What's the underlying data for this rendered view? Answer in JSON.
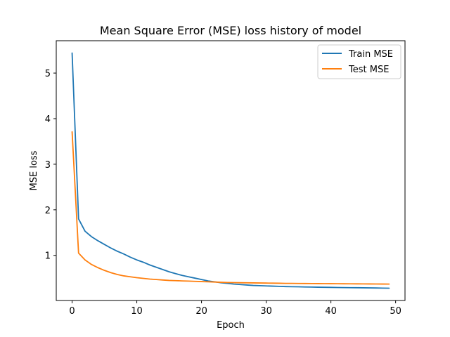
{
  "chart_data": {
    "type": "line",
    "title": "Mean Square Error (MSE) loss history of model",
    "xlabel": "Epoch",
    "ylabel": "MSE loss",
    "xlim": [
      -2.45,
      51.45
    ],
    "ylim": [
      0.01,
      5.71
    ],
    "xticks": [
      0,
      10,
      20,
      30,
      40,
      50
    ],
    "yticks": [
      1,
      2,
      3,
      4,
      5
    ],
    "grid": false,
    "legend_position": "upper right",
    "x": [
      0,
      1,
      2,
      3,
      4,
      5,
      6,
      7,
      8,
      9,
      10,
      11,
      12,
      13,
      14,
      15,
      16,
      17,
      18,
      19,
      20,
      21,
      22,
      23,
      24,
      25,
      26,
      27,
      28,
      29,
      30,
      31,
      32,
      33,
      34,
      35,
      36,
      37,
      38,
      39,
      40,
      41,
      42,
      43,
      44,
      45,
      46,
      47,
      48,
      49
    ],
    "series": [
      {
        "name": "Train MSE",
        "color": "#1f77b4",
        "values": [
          5.44,
          1.8,
          1.53,
          1.41,
          1.32,
          1.24,
          1.16,
          1.09,
          1.03,
          0.96,
          0.9,
          0.85,
          0.79,
          0.74,
          0.69,
          0.64,
          0.6,
          0.56,
          0.53,
          0.5,
          0.47,
          0.44,
          0.42,
          0.4,
          0.385,
          0.37,
          0.36,
          0.35,
          0.34,
          0.335,
          0.33,
          0.325,
          0.32,
          0.315,
          0.312,
          0.31,
          0.307,
          0.305,
          0.302,
          0.3,
          0.298,
          0.295,
          0.293,
          0.291,
          0.29,
          0.288,
          0.286,
          0.284,
          0.282,
          0.28
        ]
      },
      {
        "name": "Test MSE",
        "color": "#ff7f0e",
        "values": [
          3.71,
          1.05,
          0.9,
          0.8,
          0.73,
          0.67,
          0.62,
          0.58,
          0.55,
          0.53,
          0.51,
          0.495,
          0.48,
          0.47,
          0.46,
          0.45,
          0.445,
          0.44,
          0.435,
          0.43,
          0.425,
          0.42,
          0.415,
          0.41,
          0.405,
          0.403,
          0.4,
          0.398,
          0.396,
          0.394,
          0.392,
          0.39,
          0.388,
          0.386,
          0.385,
          0.384,
          0.383,
          0.382,
          0.381,
          0.38,
          0.379,
          0.378,
          0.377,
          0.376,
          0.375,
          0.374,
          0.373,
          0.372,
          0.371,
          0.37
        ]
      }
    ]
  }
}
